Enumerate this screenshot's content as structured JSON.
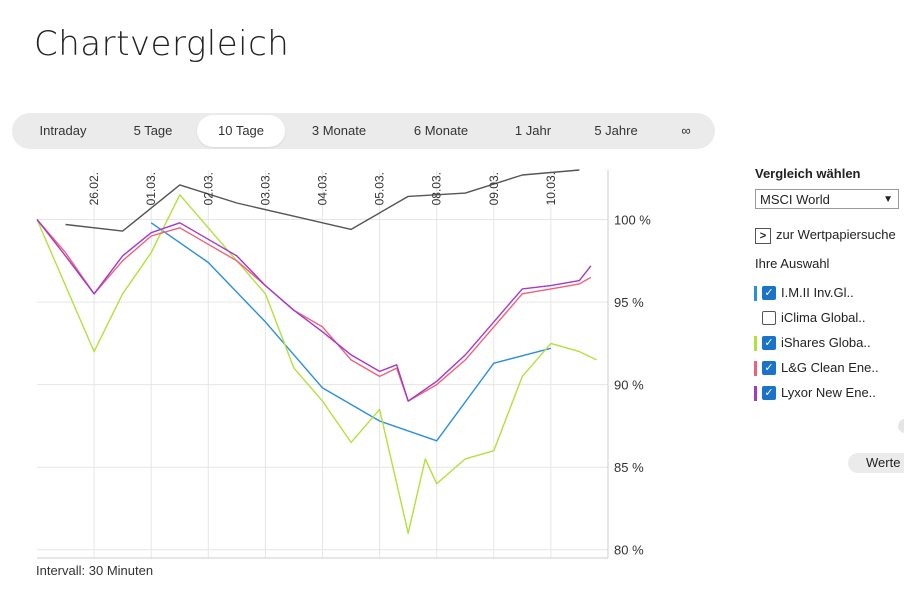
{
  "page": {
    "title": "Chartvergleich",
    "interval": "Intervall: 30 Minuten"
  },
  "tabs": [
    {
      "label": "Intraday",
      "active": false
    },
    {
      "label": "5 Tage",
      "active": false
    },
    {
      "label": "10 Tage",
      "active": true
    },
    {
      "label": "3 Monate",
      "active": false
    },
    {
      "label": "6 Monate",
      "active": false
    },
    {
      "label": "1 Jahr",
      "active": false
    },
    {
      "label": "5 Jahre",
      "active": false
    },
    {
      "label": "∞",
      "active": false
    }
  ],
  "sidebar": {
    "heading": "Vergleich wählen",
    "select_value": "MSCI World",
    "search_label": "zur Wertpapiersuche",
    "selection_heading": "Ihre Auswahl",
    "items": [
      {
        "label": "I.M.II Inv.Gl..",
        "checked": true,
        "color": "#2a8fe0"
      },
      {
        "label": "iClima Global..",
        "checked": false,
        "color": ""
      },
      {
        "label": "iShares Globa..",
        "checked": true,
        "color": "#b4e03c"
      },
      {
        "label": "L&G Clean Ene..",
        "checked": true,
        "color": "#f0607a"
      },
      {
        "label": "Lyxor New Ene..",
        "checked": true,
        "color": "#a23ac8"
      }
    ],
    "values_button": "Werte"
  },
  "chart_data": {
    "type": "line",
    "x_ticks": [
      "26.02.",
      "01.03.",
      "02.03.",
      "03.03.",
      "04.03.",
      "05.03.",
      "08.03.",
      "09.03.",
      "10.03."
    ],
    "y_ticks": [
      "100 %",
      "95 %",
      "90 %",
      "85 %",
      "80 %"
    ],
    "y_tick_values": [
      100,
      95,
      90,
      85,
      80
    ],
    "ylim": [
      79.5,
      103
    ],
    "x_range": [
      0,
      10
    ],
    "grid": true,
    "series": [
      {
        "color": "#555555",
        "x": [
          0.5,
          1.5,
          2.5,
          3.5,
          4.5,
          5.5,
          6.5,
          7.5,
          8.5,
          9.5
        ],
        "y": [
          99.7,
          99.3,
          102.1,
          101.0,
          100.2,
          99.4,
          101.4,
          101.6,
          102.7,
          103.0
        ]
      },
      {
        "color": "#2a8fe0",
        "x": [
          2.0,
          3.0,
          4.0,
          5.0,
          6.0,
          7.0,
          8.0,
          9.0
        ],
        "y": [
          99.8,
          97.4,
          93.8,
          89.8,
          87.8,
          86.6,
          91.3,
          92.2
        ]
      },
      {
        "color": "#b4e03c",
        "x": [
          0,
          0.5,
          1.0,
          1.5,
          2.0,
          2.5,
          3.0,
          3.5,
          4.0,
          4.5,
          5.0,
          5.5,
          6.0,
          6.5,
          6.8,
          7.0,
          7.5,
          8.0,
          8.5,
          9.0,
          9.5,
          9.8
        ],
        "y": [
          100.0,
          96.0,
          92.0,
          95.5,
          98.0,
          101.5,
          99.5,
          97.5,
          95.5,
          91.0,
          89.0,
          86.5,
          88.5,
          81.0,
          85.5,
          84.0,
          85.5,
          86.0,
          90.5,
          92.5,
          92.0,
          91.5
        ]
      },
      {
        "color": "#f0607a",
        "x": [
          0,
          0.5,
          1.0,
          1.5,
          2.0,
          2.5,
          3.0,
          3.5,
          4.0,
          4.5,
          5.0,
          5.5,
          6.0,
          6.3,
          6.5,
          7.0,
          7.5,
          8.0,
          8.5,
          9.0,
          9.5,
          9.7
        ],
        "y": [
          100.0,
          98.0,
          95.5,
          97.5,
          99.0,
          99.5,
          98.5,
          97.5,
          96.0,
          94.5,
          93.5,
          91.5,
          90.5,
          91.0,
          89.0,
          90.0,
          91.5,
          93.5,
          95.5,
          95.8,
          96.1,
          96.5
        ]
      },
      {
        "color": "#a23ac8",
        "x": [
          0,
          0.5,
          1.0,
          1.5,
          2.0,
          2.5,
          3.0,
          3.5,
          4.0,
          4.5,
          5.0,
          5.5,
          6.0,
          6.3,
          6.5,
          7.0,
          7.5,
          8.0,
          8.5,
          9.0,
          9.5,
          9.7
        ],
        "y": [
          100.0,
          97.8,
          95.5,
          97.8,
          99.2,
          99.8,
          98.8,
          97.8,
          96.0,
          94.5,
          93.2,
          91.8,
          90.8,
          91.2,
          89.0,
          90.2,
          91.8,
          93.8,
          95.8,
          96.0,
          96.3,
          97.2
        ]
      }
    ]
  }
}
